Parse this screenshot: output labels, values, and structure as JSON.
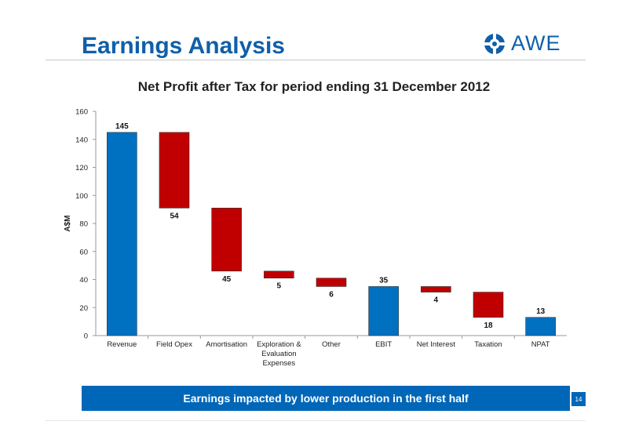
{
  "slide": {
    "title": "Earnings Analysis",
    "logo_text": "AWE",
    "banner_text": "Earnings impacted by lower production in the first half",
    "page_number": "14"
  },
  "colors": {
    "increase": "#0070c0",
    "decrease": "#c00000",
    "title_blue": "#0f5faa"
  },
  "chart_data": {
    "type": "bar",
    "subtype": "waterfall",
    "title": "Net Profit after Tax for period ending 31 December 2012",
    "ylabel": "A$M",
    "ylim": [
      0,
      160
    ],
    "yticks": [
      0,
      20,
      40,
      60,
      80,
      100,
      120,
      140,
      160
    ],
    "categories": [
      [
        "Revenue"
      ],
      [
        "Field Opex"
      ],
      [
        "Amortisation"
      ],
      [
        "Exploration &",
        "Evaluation",
        "Expenses"
      ],
      [
        "Other"
      ],
      [
        "EBIT"
      ],
      [
        "Net Interest"
      ],
      [
        "Taxation"
      ],
      [
        "NPAT"
      ]
    ],
    "bars": [
      {
        "base": 0,
        "top": 145,
        "label": "145",
        "kind": "total"
      },
      {
        "base": 91,
        "top": 145,
        "label": "54",
        "kind": "decrease"
      },
      {
        "base": 46,
        "top": 91,
        "label": "45",
        "kind": "decrease"
      },
      {
        "base": 41,
        "top": 46,
        "label": "5",
        "kind": "decrease"
      },
      {
        "base": 35,
        "top": 41,
        "label": "6",
        "kind": "decrease"
      },
      {
        "base": 0,
        "top": 35,
        "label": "35",
        "kind": "total"
      },
      {
        "base": 31,
        "top": 35,
        "label": "4",
        "kind": "decrease"
      },
      {
        "base": 13,
        "top": 31,
        "label": "18",
        "kind": "decrease"
      },
      {
        "base": 0,
        "top": 13,
        "label": "13",
        "kind": "total"
      }
    ],
    "legend": "none",
    "grid": false
  }
}
